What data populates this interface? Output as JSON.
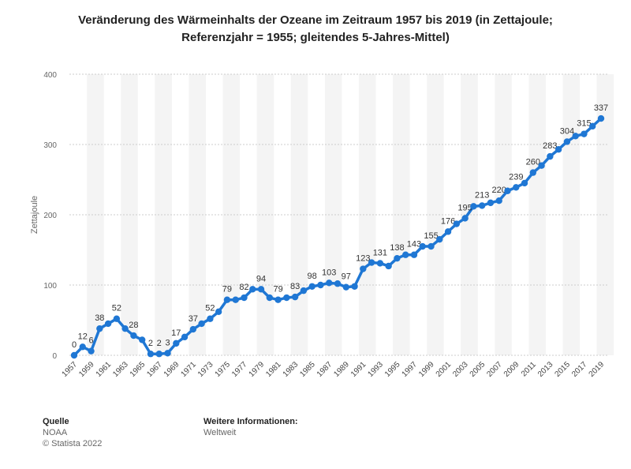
{
  "chart_data": {
    "type": "line",
    "title": "Veränderung des Wärmeinhalts der Ozeane im Zeitraum 1957 bis 2019 (in Zettajoule; Referenzjahr = 1955; gleitendes 5-Jahres-Mittel)",
    "y_label": "Zettajoule",
    "categories": [
      "1957",
      null,
      "1959",
      null,
      "1961",
      null,
      "1963",
      null,
      "1965",
      null,
      "1967",
      null,
      "1969",
      null,
      "1971",
      null,
      "1973",
      null,
      "1975",
      null,
      "1977",
      null,
      "1979",
      null,
      "1981",
      null,
      "1983",
      null,
      "1985",
      null,
      "1987",
      null,
      "1989",
      null,
      "1991",
      null,
      "1993",
      null,
      "1995",
      null,
      "1997",
      null,
      "1999",
      null,
      "2001",
      null,
      "2003",
      null,
      "2005",
      null,
      "2007",
      null,
      "2009",
      null,
      "2011",
      null,
      "2013",
      null,
      "2015",
      null,
      "2017",
      null,
      "2019"
    ],
    "values": [
      0,
      12,
      6,
      38,
      45,
      52,
      38,
      28,
      22,
      2,
      2,
      3,
      17,
      26,
      37,
      45,
      52,
      62,
      79,
      79,
      82,
      94,
      94,
      82,
      79,
      82,
      83,
      92,
      98,
      100,
      103,
      102,
      97,
      98,
      123,
      132,
      131,
      127,
      138,
      143,
      143,
      155,
      155,
      165,
      176,
      187,
      195,
      212,
      213,
      217,
      220,
      234,
      239,
      245,
      260,
      270,
      283,
      293,
      304,
      312,
      315,
      326,
      337
    ],
    "value_labels": [
      "0",
      "12",
      "6",
      "38",
      null,
      "52",
      null,
      "28",
      null,
      "2",
      "2",
      "3",
      "17",
      null,
      "37",
      null,
      "52",
      null,
      "79",
      null,
      "82",
      null,
      "94",
      null,
      "79",
      null,
      "83",
      null,
      "98",
      null,
      "103",
      null,
      "97",
      null,
      "123",
      null,
      "131",
      null,
      "138",
      null,
      "143",
      null,
      "155",
      null,
      "176",
      null,
      "195",
      null,
      "213",
      null,
      "220",
      null,
      "239",
      null,
      "260",
      null,
      "283",
      null,
      "304",
      null,
      "315",
      null,
      "337"
    ],
    "color": "#1f77d4",
    "ylim": [
      0,
      400
    ],
    "yticks": [
      0,
      100,
      200,
      300,
      400
    ],
    "grid": true
  },
  "footer": {
    "source_heading": "Quelle",
    "source": "NOAA",
    "copyright": "© Statista 2022",
    "info_heading": "Weitere Informationen:",
    "info": "Weltweit"
  }
}
